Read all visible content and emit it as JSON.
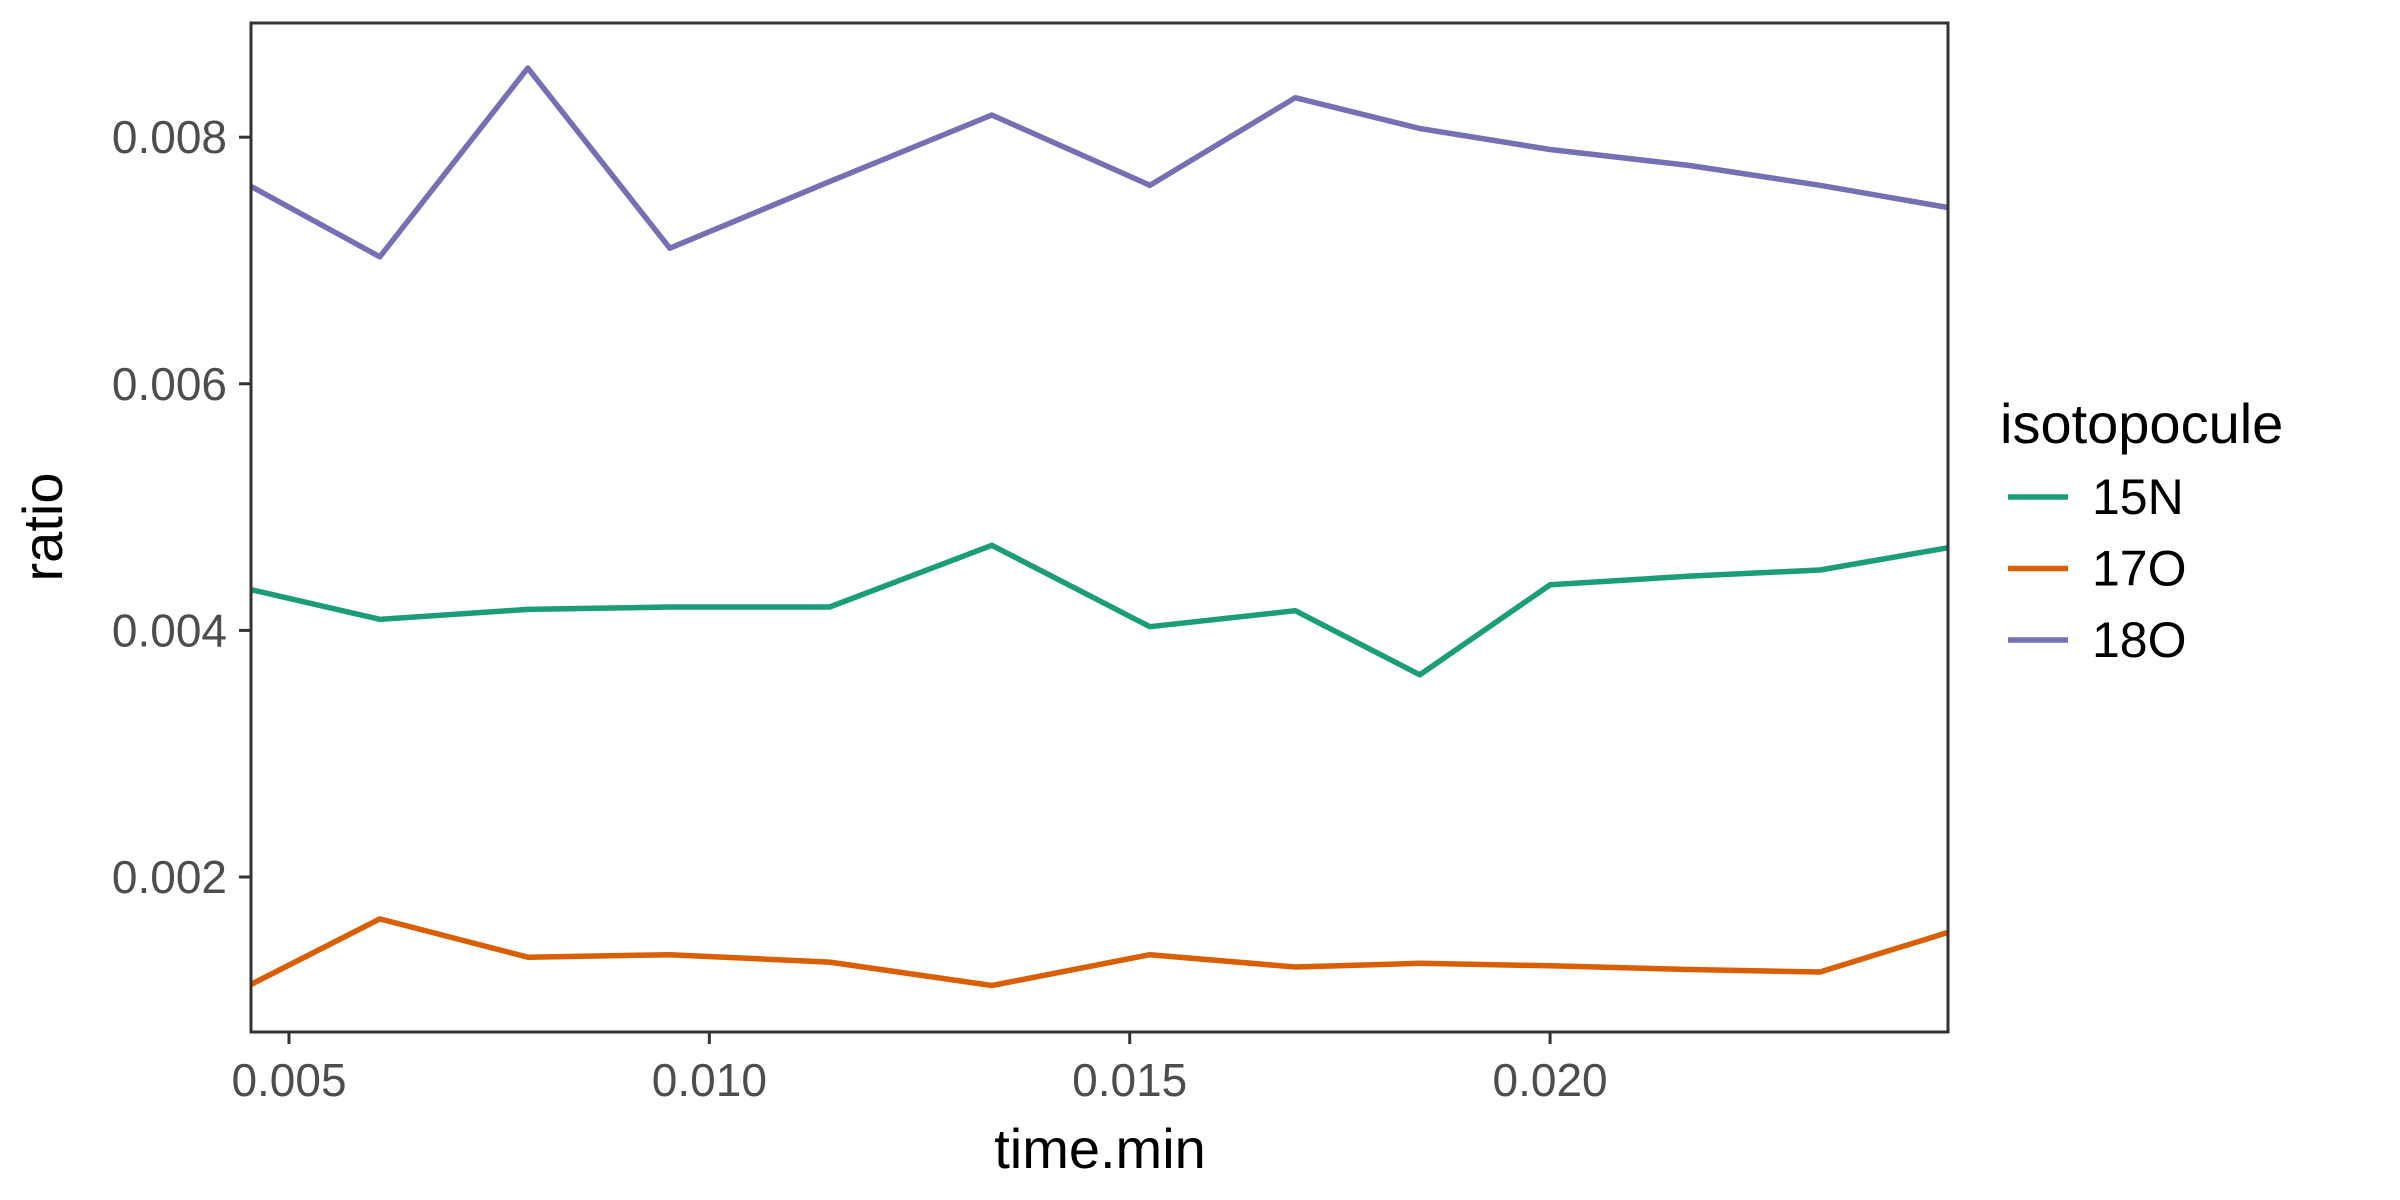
{
  "chart_data": {
    "type": "line",
    "title": "",
    "xlabel": "time.min",
    "ylabel": "ratio",
    "legend_title": "isotopocule",
    "legend_position": "right",
    "grid": false,
    "xlim": [
      0.004548,
      0.024733
    ],
    "ylim": [
      0.000743,
      0.008926
    ],
    "x_ticks": {
      "values": [
        0.005,
        0.01,
        0.015,
        0.02
      ],
      "labels": [
        "0.005",
        "0.010",
        "0.015",
        "0.020"
      ]
    },
    "y_ticks": {
      "values": [
        0.002,
        0.004,
        0.006,
        0.008
      ],
      "labels": [
        "0.002",
        "0.004",
        "0.006",
        "0.008"
      ]
    },
    "x": [
      0.00455,
      0.00608,
      0.00784,
      0.00953,
      0.01143,
      0.01336,
      0.01524,
      0.01697,
      0.01845,
      0.02,
      0.02166,
      0.02321,
      0.02473
    ],
    "series": [
      {
        "name": "15N",
        "color": "#1B9E77",
        "values": [
          0.00433,
          0.00409,
          0.00417,
          0.00419,
          0.00419,
          0.00469,
          0.00403,
          0.00416,
          0.00364,
          0.00437,
          0.00444,
          0.00449,
          0.00467
        ]
      },
      {
        "name": "17O",
        "color": "#D95F02",
        "values": [
          0.00113,
          0.00166,
          0.00135,
          0.00137,
          0.00131,
          0.00112,
          0.00137,
          0.00127,
          0.0013,
          0.00128,
          0.00125,
          0.00123,
          0.00155
        ]
      },
      {
        "name": "18O",
        "color": "#7570B3",
        "values": [
          0.0076,
          0.00703,
          0.00856,
          0.0071,
          0.00764,
          0.00818,
          0.00761,
          0.00832,
          0.00807,
          0.0079,
          0.00777,
          0.00761,
          0.00743
        ]
      }
    ]
  },
  "style": {
    "background": "#FFFFFF",
    "panel_border": "#333333",
    "tick_mark_color": "#333333",
    "tick_label_color": "#4D4D4D",
    "axis_title_color": "#000000",
    "legend_text_color": "#000000"
  }
}
